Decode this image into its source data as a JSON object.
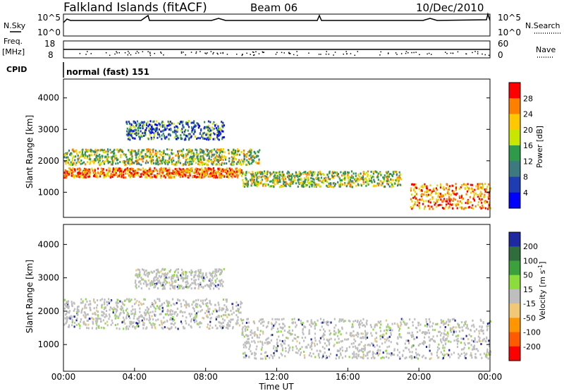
{
  "header": {
    "station": "Falkland Islands (fitACF)",
    "beam": "Beam 06",
    "date": "10/Dec/2010"
  },
  "aux_panels": {
    "nsky_label": "N.Sky",
    "nsearch_label": "N.Search",
    "nsky_ticks": [
      "10^5",
      "10^0"
    ],
    "freq_label_1": "Freq.",
    "freq_label_2": "[MHz]",
    "freq_ticks": [
      "18",
      "8"
    ],
    "nave_label": "Nave",
    "nave_ticks": [
      "60",
      "0"
    ],
    "cpid_label": "CPID",
    "cpid_text": "normal (fast) 151"
  },
  "chart_data": [
    {
      "type": "heatmap",
      "name": "power",
      "ylabel": "Slant Range [km]",
      "y_ticks": [
        1000,
        2000,
        3000,
        4000
      ],
      "ylim": [
        200,
        4600
      ],
      "colorbar_label": "Power [dB]",
      "colorbar_ticks": [
        28,
        24,
        20,
        16,
        12,
        8,
        4
      ],
      "colorbar_colors": [
        "#ff0000",
        "#ff7f00",
        "#ffc800",
        "#c8e600",
        "#2f9a4a",
        "#3c7a80",
        "#1e3cb4",
        "#0000ff"
      ],
      "bands": [
        {
          "from_h": 0,
          "to_h": 10,
          "range_km": [
            1500,
            1800
          ],
          "level": "strong"
        },
        {
          "from_h": 0,
          "to_h": 11,
          "range_km": [
            1900,
            2400
          ],
          "level": "medium"
        },
        {
          "from_h": 3.5,
          "to_h": 9,
          "range_km": [
            2700,
            3300
          ],
          "level": "weak"
        },
        {
          "from_h": 10,
          "to_h": 19,
          "range_km": [
            1200,
            1700
          ],
          "level": "medium"
        },
        {
          "from_h": 19.5,
          "to_h": 24,
          "range_km": [
            500,
            1300
          ],
          "level": "strong"
        }
      ]
    },
    {
      "type": "heatmap",
      "name": "velocity",
      "ylabel": "Slant Range [km]",
      "y_ticks": [
        1000,
        2000,
        3000,
        4000
      ],
      "ylim": [
        200,
        4600
      ],
      "colorbar_label": "Velocity [m s^-1]",
      "colorbar_ticks": [
        200,
        100,
        50,
        15,
        -15,
        -50,
        -100,
        -200
      ],
      "colorbar_colors": [
        "#1e28a0",
        "#2f6e3c",
        "#3ca03c",
        "#8cdc3c",
        "#bebebe",
        "#f0c878",
        "#ff9600",
        "#ff5a00",
        "#ff0000"
      ],
      "bands": [
        {
          "from_h": 0,
          "to_h": 10,
          "range_km": [
            1500,
            2400
          ],
          "level": "gray"
        },
        {
          "from_h": 4,
          "to_h": 9,
          "range_km": [
            2700,
            3300
          ],
          "level": "gray"
        },
        {
          "from_h": 10,
          "to_h": 24,
          "range_km": [
            600,
            1800
          ],
          "level": "gray"
        }
      ]
    }
  ],
  "x_axis": {
    "label": "Time UT",
    "ticks": [
      "00:00",
      "04:00",
      "08:00",
      "12:00",
      "16:00",
      "20:00",
      "00:00"
    ]
  }
}
